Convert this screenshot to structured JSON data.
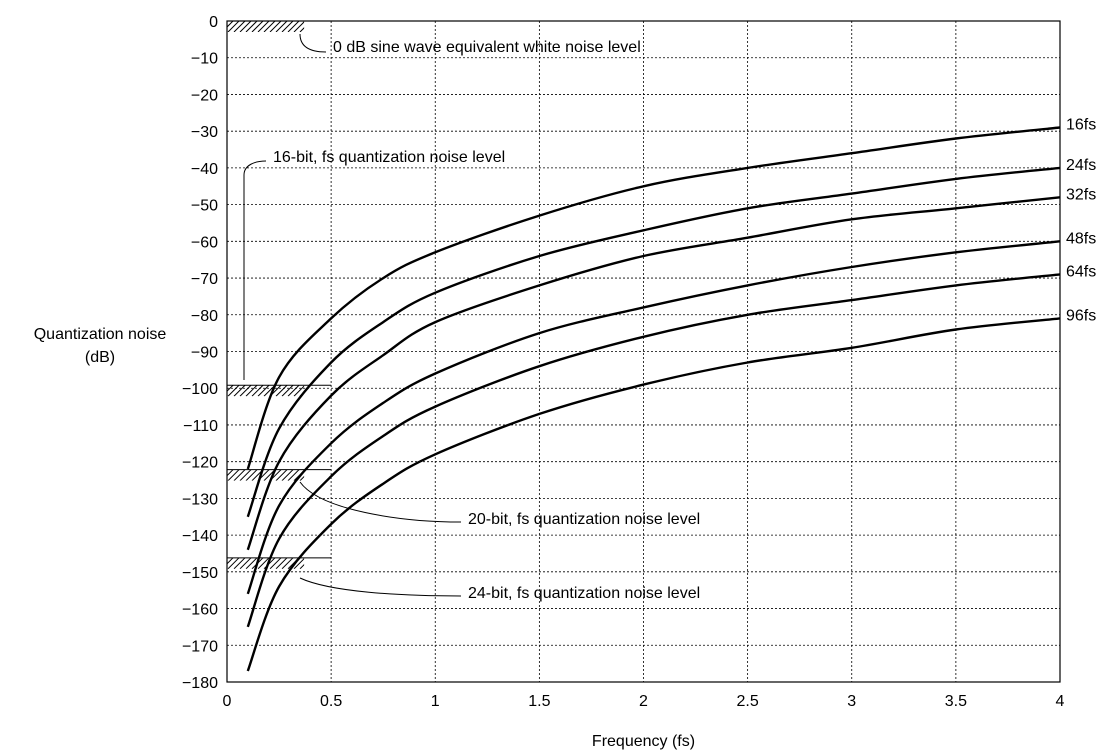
{
  "chart_data": {
    "type": "line",
    "xlabel": "Frequency (fs)",
    "ylabel_lines": [
      "Quantization noise",
      "(dB)"
    ],
    "xlim": [
      0,
      4
    ],
    "ylim": [
      -180,
      0
    ],
    "x_ticks": [
      0,
      0.5,
      1,
      1.5,
      2,
      2.5,
      3,
      3.5,
      4
    ],
    "x_tick_labels": [
      "0",
      "0.5",
      "1",
      "1.5",
      "2",
      "2.5",
      "3",
      "3.5",
      "4"
    ],
    "y_ticks": [
      0,
      -10,
      -20,
      -30,
      -40,
      -50,
      -60,
      -70,
      -80,
      -90,
      -100,
      -110,
      -120,
      -130,
      -140,
      -150,
      -160,
      -170,
      -180
    ],
    "y_tick_labels": [
      "0",
      "−10",
      "−20",
      "−30",
      "−40",
      "−50",
      "−60",
      "−70",
      "−80",
      "−90",
      "−100",
      "−110",
      "−120",
      "−130",
      "−140",
      "−150",
      "−160",
      "−170",
      "−180"
    ],
    "grid": true,
    "series": [
      {
        "name": "16fs",
        "x": [
          0.1,
          0.25,
          0.5,
          0.75,
          1,
          1.5,
          2,
          2.5,
          3,
          3.5,
          4
        ],
        "values": [
          -122,
          -97,
          -81,
          -70,
          -63,
          -53,
          -45,
          -40,
          -36,
          -32,
          -29
        ]
      },
      {
        "name": "24fs",
        "x": [
          0.1,
          0.25,
          0.5,
          0.75,
          1,
          1.5,
          2,
          2.5,
          3,
          3.5,
          4
        ],
        "values": [
          -135,
          -111,
          -93,
          -82,
          -74,
          -64,
          -57,
          -51,
          -47,
          -43,
          -40
        ]
      },
      {
        "name": "32fs",
        "x": [
          0.1,
          0.25,
          0.5,
          0.75,
          1,
          1.5,
          2,
          2.5,
          3,
          3.5,
          4
        ],
        "values": [
          -144,
          -120,
          -102,
          -91,
          -82,
          -72,
          -64,
          -59,
          -54,
          -51,
          -48
        ]
      },
      {
        "name": "48fs",
        "x": [
          0.1,
          0.25,
          0.5,
          0.75,
          1,
          1.5,
          2,
          2.5,
          3,
          3.5,
          4
        ],
        "values": [
          -156,
          -132,
          -115,
          -104,
          -96,
          -85,
          -78,
          -72,
          -67,
          -63,
          -60
        ]
      },
      {
        "name": "64fs",
        "x": [
          0.1,
          0.25,
          0.5,
          0.75,
          1,
          1.5,
          2,
          2.5,
          3,
          3.5,
          4
        ],
        "values": [
          -165,
          -141,
          -124,
          -113,
          -105,
          -94,
          -86,
          -80,
          -76,
          -72,
          -69
        ]
      },
      {
        "name": "96fs",
        "x": [
          0.1,
          0.25,
          0.5,
          0.75,
          1,
          1.5,
          2,
          2.5,
          3,
          3.5,
          4
        ],
        "values": [
          -177,
          -154,
          -137,
          -126,
          -118,
          -107,
          -99,
          -93,
          -89,
          -84,
          -81
        ]
      }
    ],
    "reference_bands": [
      {
        "level": 0,
        "x_range": [
          0,
          0.5
        ],
        "label": "0 dB sine wave equivalent white noise level"
      },
      {
        "level": -100,
        "x_range": [
          0,
          0.5
        ],
        "label": "16-bit, fs quantization noise level"
      },
      {
        "level": -123,
        "x_range": [
          0,
          0.5
        ],
        "label": "20-bit, fs quantization noise level"
      },
      {
        "level": -147,
        "x_range": [
          0,
          0.5
        ],
        "label": "24-bit, fs quantization noise level"
      }
    ]
  }
}
